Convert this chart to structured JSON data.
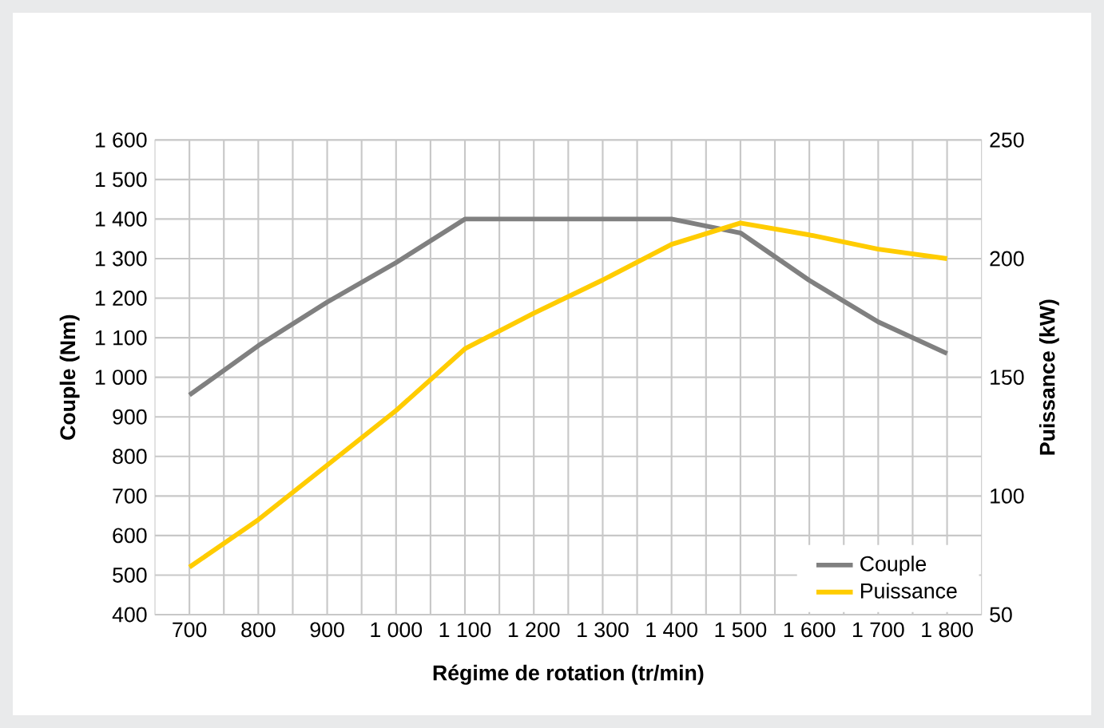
{
  "chart_data": {
    "type": "line",
    "xlabel": "Régime de rotation (tr/min)",
    "ylabel": "Couple (Nm)",
    "y2label": "Puissance (kW)",
    "x": [
      700,
      800,
      900,
      1000,
      1100,
      1200,
      1300,
      1400,
      1500,
      1600,
      1700,
      1800
    ],
    "series": [
      {
        "name": "Couple",
        "color": "#808080",
        "values": [
          955,
          1080,
          1190,
          1290,
          1400,
          1400,
          1400,
          1400,
          1365,
          1245,
          1140,
          1060
        ]
      },
      {
        "name": "Puissance",
        "color": "#ffcc00",
        "axis": "y2",
        "values": [
          70,
          90,
          113,
          136,
          162,
          177,
          191,
          206,
          215,
          210,
          204,
          200
        ]
      }
    ],
    "xlim": [
      650,
      1850
    ],
    "xticks": [
      {
        "value": 700,
        "label": "700"
      },
      {
        "value": 800,
        "label": "800"
      },
      {
        "value": 900,
        "label": "900"
      },
      {
        "value": 1000,
        "label": "1 000"
      },
      {
        "value": 1100,
        "label": "1 100"
      },
      {
        "value": 1200,
        "label": "1 200"
      },
      {
        "value": 1300,
        "label": "1 300"
      },
      {
        "value": 1400,
        "label": "1 400"
      },
      {
        "value": 1500,
        "label": "1 500"
      },
      {
        "value": 1600,
        "label": "1 600"
      },
      {
        "value": 1700,
        "label": "1 700"
      },
      {
        "value": 1800,
        "label": "1 800"
      }
    ],
    "ylim": [
      400,
      1600
    ],
    "yticks": [
      400,
      500,
      600,
      700,
      800,
      900,
      {
        "value": 1000,
        "label": "1 000"
      },
      {
        "value": 1100,
        "label": "1 100"
      },
      {
        "value": 1200,
        "label": "1 200"
      },
      {
        "value": 1300,
        "label": "1 300"
      },
      {
        "value": 1400,
        "label": "1 400"
      },
      {
        "value": 1500,
        "label": "1 500"
      },
      {
        "value": 1600,
        "label": "1 600"
      }
    ],
    "y2lim": [
      50,
      250
    ],
    "y2ticks": [
      50,
      100,
      150,
      200,
      250
    ],
    "grid": true,
    "legend": "bottom right",
    "line_style": "solid",
    "marker": "none"
  }
}
